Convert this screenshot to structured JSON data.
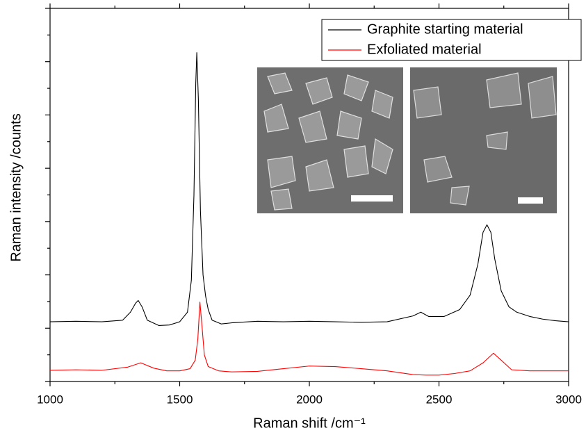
{
  "chart_data": {
    "type": "line",
    "xlabel": "Raman shift /cm⁻¹",
    "ylabel": "Raman intensity /counts",
    "xlim": [
      1000,
      3000
    ],
    "xticks": [
      1000,
      1500,
      2000,
      2500,
      3000
    ],
    "xminorticks": [
      1250,
      1750,
      2250,
      2750
    ],
    "ylim": [
      0,
      7
    ],
    "yticks": [
      0,
      1,
      2,
      3,
      4,
      5,
      6,
      7
    ],
    "yminorticks": [
      0.5,
      1.5,
      2.5,
      3.5,
      4.5,
      5.5,
      6.5
    ],
    "legend": "upper right",
    "series": [
      {
        "name": "Graphite starting material",
        "color": "#000000",
        "x": [
          1000,
          1100,
          1200,
          1280,
          1310,
          1330,
          1340,
          1355,
          1375,
          1420,
          1460,
          1500,
          1530,
          1545,
          1555,
          1562,
          1566,
          1572,
          1580,
          1590,
          1600,
          1610,
          1625,
          1660,
          1700,
          1800,
          1900,
          2000,
          2100,
          2200,
          2300,
          2400,
          2430,
          2460,
          2520,
          2580,
          2620,
          2650,
          2670,
          2685,
          2700,
          2715,
          2740,
          2770,
          2800,
          2850,
          2900,
          2950,
          3000
        ],
        "values": [
          1.12,
          1.13,
          1.12,
          1.15,
          1.3,
          1.47,
          1.52,
          1.4,
          1.15,
          1.05,
          1.06,
          1.12,
          1.3,
          1.9,
          3.5,
          5.6,
          6.17,
          5.3,
          3.2,
          2.0,
          1.6,
          1.35,
          1.15,
          1.08,
          1.1,
          1.13,
          1.12,
          1.13,
          1.12,
          1.11,
          1.12,
          1.23,
          1.3,
          1.22,
          1.22,
          1.35,
          1.62,
          2.2,
          2.8,
          2.94,
          2.8,
          2.3,
          1.7,
          1.4,
          1.3,
          1.22,
          1.17,
          1.14,
          1.12
        ]
      },
      {
        "name": "Exfoliated material",
        "color": "#ff0000",
        "x": [
          1000,
          1100,
          1200,
          1300,
          1350,
          1400,
          1450,
          1500,
          1540,
          1560,
          1570,
          1578,
          1585,
          1595,
          1610,
          1650,
          1700,
          1800,
          1900,
          2000,
          2100,
          2200,
          2300,
          2400,
          2450,
          2500,
          2560,
          2620,
          2670,
          2710,
          2740,
          2780,
          2850,
          2950,
          3000
        ],
        "values": [
          0.21,
          0.22,
          0.21,
          0.27,
          0.35,
          0.25,
          0.2,
          0.2,
          0.24,
          0.4,
          0.8,
          1.49,
          1.1,
          0.5,
          0.28,
          0.2,
          0.18,
          0.19,
          0.24,
          0.29,
          0.28,
          0.24,
          0.2,
          0.13,
          0.12,
          0.12,
          0.15,
          0.2,
          0.35,
          0.53,
          0.4,
          0.22,
          0.2,
          0.2,
          0.2
        ]
      }
    ]
  }
}
